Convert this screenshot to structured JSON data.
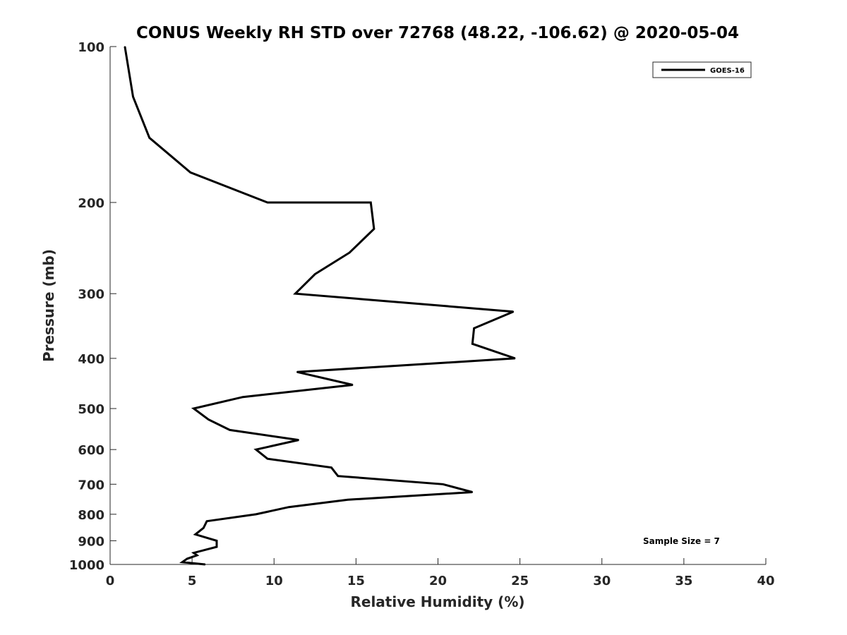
{
  "chart_data": {
    "type": "line",
    "title": "CONUS Weekly RH STD over 72768 (48.22, -106.62) @ 2020-05-04",
    "xlabel": "Relative Humidity (%)",
    "ylabel": "Pressure (mb)",
    "xlim": [
      0,
      40
    ],
    "ylim": [
      100,
      1000
    ],
    "y_scale": "log",
    "y_reversed": true,
    "x_ticks": [
      0,
      5,
      10,
      15,
      20,
      25,
      30,
      35,
      40
    ],
    "y_ticks": [
      100,
      200,
      300,
      400,
      500,
      600,
      700,
      800,
      900,
      1000
    ],
    "grid": false,
    "legend_position": "top-right",
    "annotation": "Sample Size = 7",
    "series": [
      {
        "name": "GOES-16",
        "color": "#000000",
        "points": [
          {
            "x": 0.9,
            "p": 100
          },
          {
            "x": 1.4,
            "p": 125
          },
          {
            "x": 2.4,
            "p": 150
          },
          {
            "x": 4.9,
            "p": 175
          },
          {
            "x": 9.6,
            "p": 200
          },
          {
            "x": 15.9,
            "p": 200
          },
          {
            "x": 16.1,
            "p": 225
          },
          {
            "x": 14.6,
            "p": 250
          },
          {
            "x": 12.5,
            "p": 275
          },
          {
            "x": 11.3,
            "p": 300
          },
          {
            "x": 24.6,
            "p": 325
          },
          {
            "x": 22.2,
            "p": 350
          },
          {
            "x": 22.1,
            "p": 375
          },
          {
            "x": 24.7,
            "p": 400
          },
          {
            "x": 11.4,
            "p": 425
          },
          {
            "x": 14.8,
            "p": 450
          },
          {
            "x": 8.1,
            "p": 475
          },
          {
            "x": 5.1,
            "p": 500
          },
          {
            "x": 6.0,
            "p": 525
          },
          {
            "x": 7.3,
            "p": 550
          },
          {
            "x": 11.5,
            "p": 575
          },
          {
            "x": 8.9,
            "p": 600
          },
          {
            "x": 9.6,
            "p": 625
          },
          {
            "x": 13.5,
            "p": 650
          },
          {
            "x": 13.9,
            "p": 675
          },
          {
            "x": 20.3,
            "p": 700
          },
          {
            "x": 22.1,
            "p": 725
          },
          {
            "x": 14.5,
            "p": 750
          },
          {
            "x": 10.9,
            "p": 775
          },
          {
            "x": 8.9,
            "p": 800
          },
          {
            "x": 5.9,
            "p": 825
          },
          {
            "x": 5.7,
            "p": 850
          },
          {
            "x": 5.2,
            "p": 875
          },
          {
            "x": 6.5,
            "p": 900
          },
          {
            "x": 6.5,
            "p": 925
          },
          {
            "x": 5.1,
            "p": 950
          },
          {
            "x": 5.3,
            "p": 960
          },
          {
            "x": 4.7,
            "p": 975
          },
          {
            "x": 4.4,
            "p": 990
          },
          {
            "x": 5.8,
            "p": 1000
          }
        ]
      }
    ]
  }
}
